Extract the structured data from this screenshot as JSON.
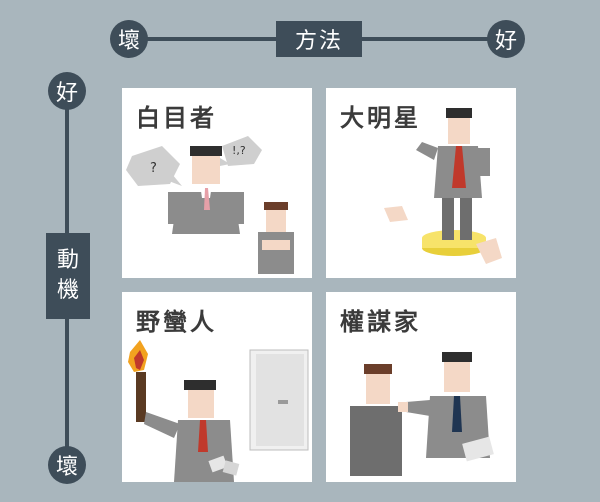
{
  "top_axis": {
    "left_label": "壞",
    "title": "方法",
    "right_label": "好"
  },
  "left_axis": {
    "top_label": "好",
    "title_line1": "動",
    "title_line2": "機",
    "bottom_label": "壞"
  },
  "quadrants": [
    {
      "id": "top-left",
      "title": "白目者",
      "bubble1": "?",
      "bubble2": "!,?"
    },
    {
      "id": "top-right",
      "title": "大明星"
    },
    {
      "id": "bottom-left",
      "title": "野蠻人"
    },
    {
      "id": "bottom-right",
      "title": "權謀家"
    }
  ],
  "colors": {
    "background": "#a9b6bd",
    "axis": "#3e4d59",
    "panel": "#ffffff",
    "suit": "#8c8c8c",
    "skin": "#f4d8c6",
    "hair": "#2e2e2e",
    "tie_red": "#c0392b",
    "podium": "#f7e36a",
    "torch_flame": "#f2a21f"
  }
}
